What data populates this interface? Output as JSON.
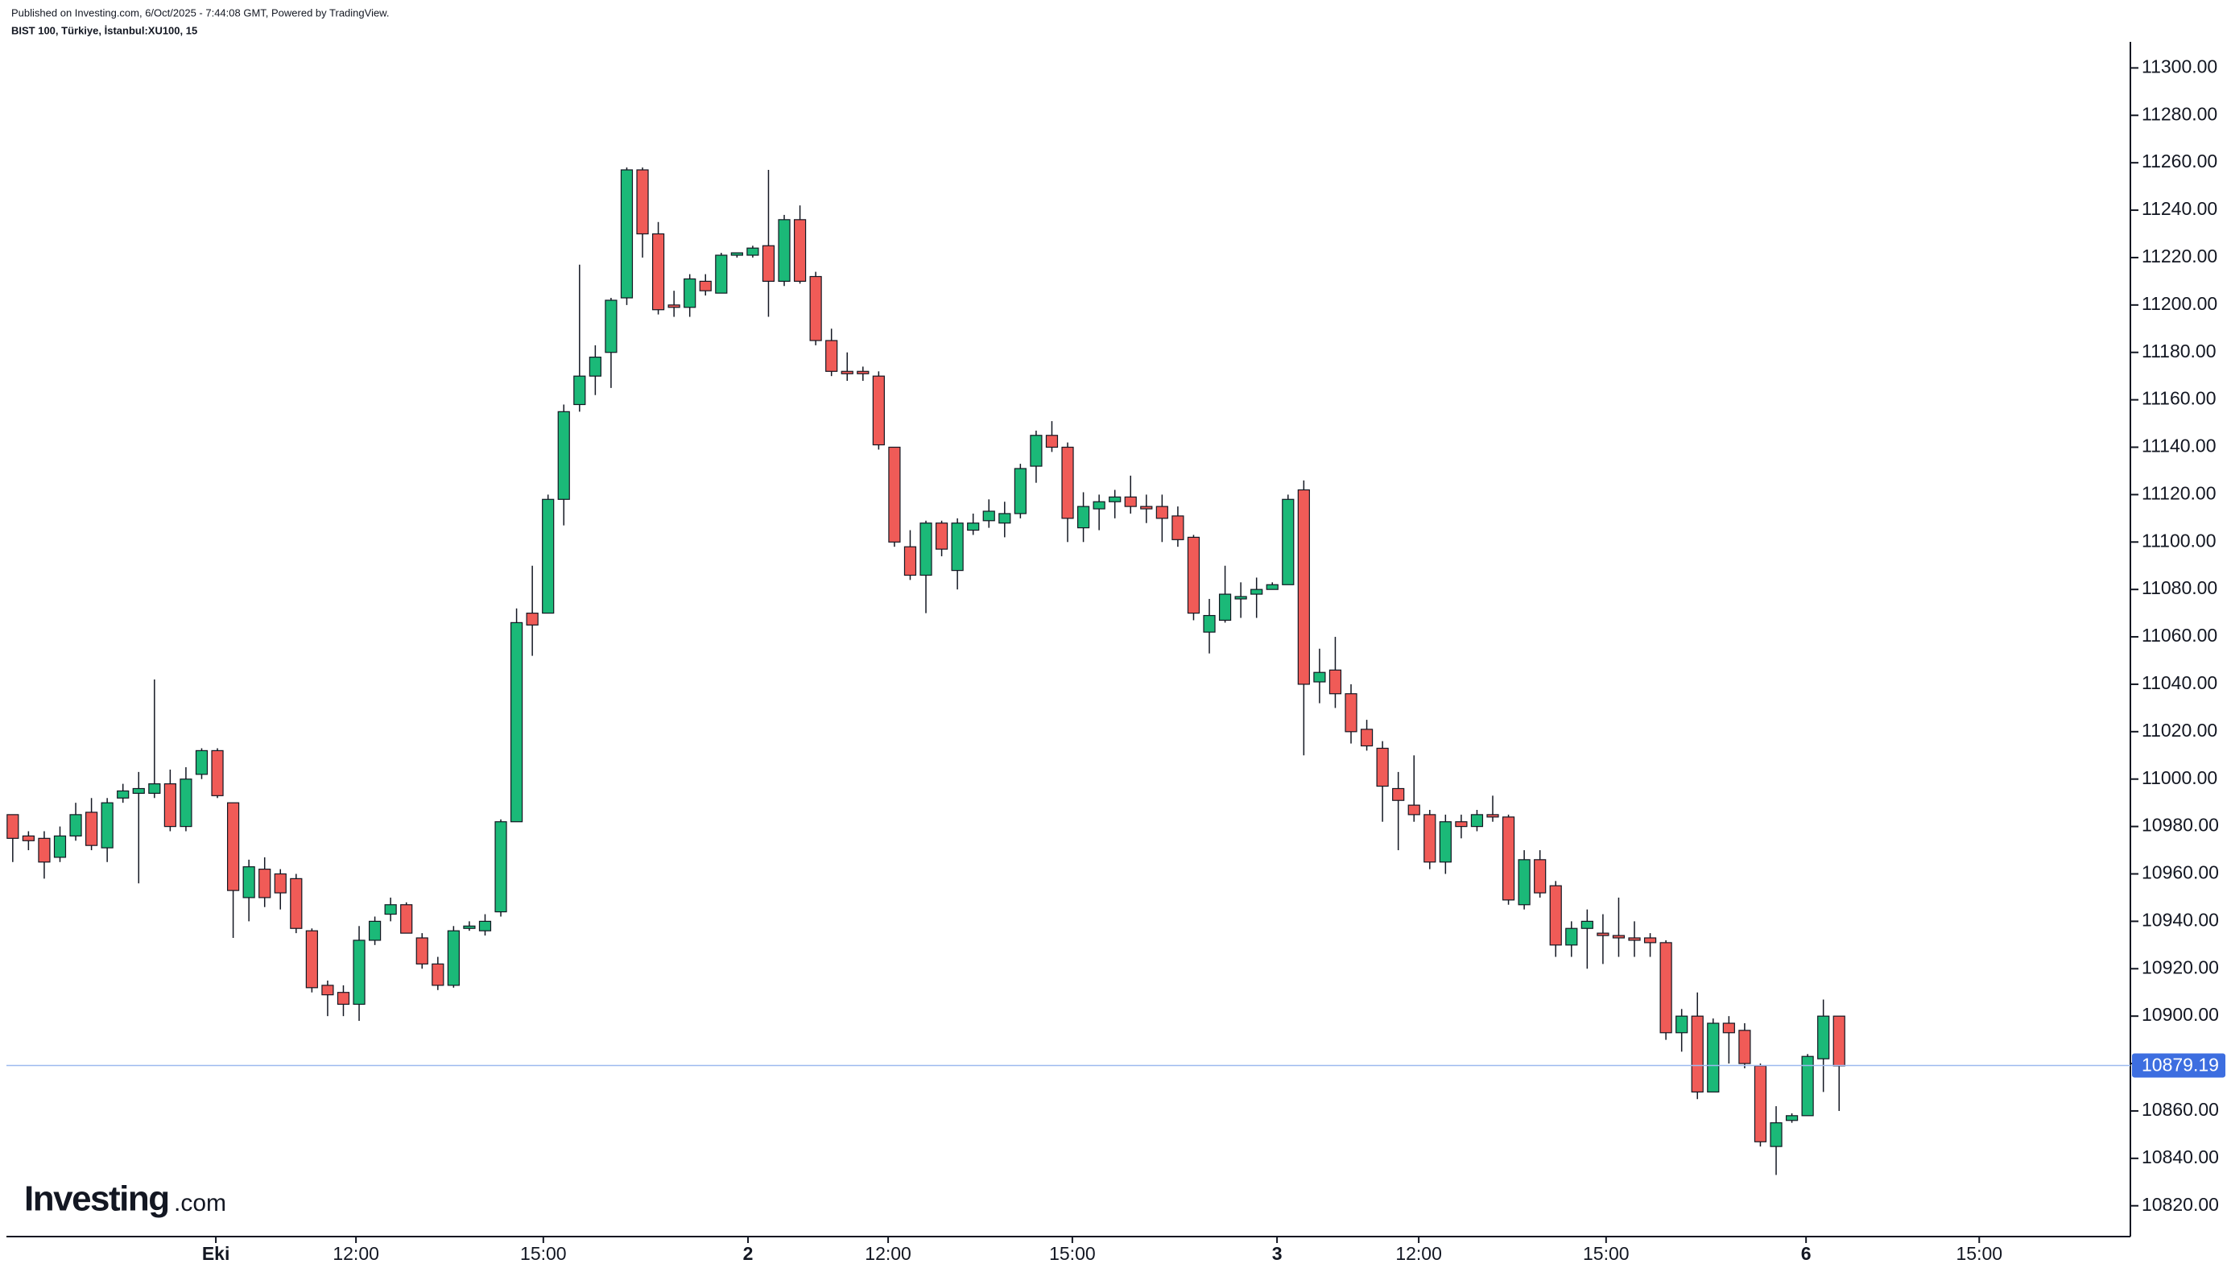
{
  "chart_data": {
    "type": "candlestick",
    "published": "Published on Investing.com, 6/Oct/2025 - 7:44:08 GMT, Powered by TradingView.",
    "symbol": "BIST 100, Türkiye, İstanbul:XU100, 15",
    "logo": {
      "brand": "Investing",
      "suffix": ".com"
    },
    "up_color": "#1bb978",
    "down_color": "#f05b57",
    "open": [
      10985,
      10976,
      10975,
      10967,
      10976,
      10986,
      10971,
      10992,
      10994,
      10994,
      10998,
      10980,
      11002,
      11012,
      10990,
      10950,
      10962,
      10960,
      10958,
      10936,
      10913,
      10910,
      10905,
      10932,
      10943,
      10947,
      10933,
      10922,
      10913,
      10937,
      10936,
      10944,
      10982,
      11070,
      11070,
      11118,
      11158,
      11170,
      11180,
      11203,
      11257,
      11230,
      11200,
      11199,
      11210,
      11205,
      11221,
      11221,
      11225,
      11210,
      11236,
      11212,
      11185,
      11172,
      11172,
      11170,
      11140,
      11098,
      11086,
      11108,
      11088,
      11105,
      11109,
      11108,
      11112,
      11132,
      11145,
      11140,
      11106,
      11114,
      11117,
      11119,
      11115,
      11115,
      11111,
      11102,
      11062,
      11067,
      11076,
      11078,
      11080,
      11082,
      11122,
      11041,
      11046,
      11036,
      11021,
      11013,
      10996,
      10989,
      10985,
      10965,
      10982,
      10980,
      10985,
      10984,
      10947,
      10966,
      10955,
      10930,
      10937,
      10935,
      10934,
      10933,
      10933,
      10931,
      10893,
      10900,
      10868,
      10897,
      10894,
      10879,
      10845,
      10856,
      10858,
      10882,
      10900
    ],
    "high": [
      10985,
      10978,
      10978,
      10980,
      10990,
      10992,
      10992,
      10998,
      11003,
      11042,
      11004,
      11005,
      11013,
      11013,
      10990,
      10966,
      10967,
      10962,
      10960,
      10937,
      10915,
      10913,
      10938,
      10942,
      10950,
      10948,
      10935,
      10925,
      10938,
      10940,
      10943,
      10983,
      11072,
      11090,
      11120,
      11158,
      11217,
      11183,
      11203,
      11258,
      11258,
      11235,
      11206,
      11213,
      11213,
      11222,
      11222,
      11225,
      11257,
      11238,
      11242,
      11214,
      11190,
      11180,
      11174,
      11172,
      11140,
      11105,
      11109,
      11109,
      11110,
      11112,
      11118,
      11117,
      11133,
      11147,
      11151,
      11142,
      11121,
      11120,
      11122,
      11128,
      11120,
      11120,
      11115,
      11103,
      11076,
      11090,
      11083,
      11085,
      11083,
      11120,
      11126,
      11055,
      11060,
      11040,
      11025,
      11016,
      11003,
      11010,
      10987,
      10985,
      10985,
      10987,
      10993,
      10985,
      10970,
      10970,
      10957,
      10940,
      10945,
      10943,
      10950,
      10940,
      10935,
      10932,
      10903,
      10910,
      10899,
      10900,
      10897,
      10880,
      10862,
      10859,
      10884,
      10907,
      10900
    ],
    "low": [
      10965,
      10970,
      10958,
      10965,
      10974,
      10970,
      10965,
      10990,
      10956,
      10992,
      10978,
      10978,
      11000,
      10992,
      10933,
      10940,
      10946,
      10945,
      10935,
      10910,
      10900,
      10900,
      10898,
      10930,
      10940,
      10935,
      10920,
      10911,
      10912,
      10936,
      10934,
      10942,
      10982,
      11052,
      11070,
      11107,
      11155,
      11162,
      11165,
      11200,
      11220,
      11196,
      11195,
      11195,
      11204,
      11205,
      11220,
      11220,
      11195,
      11208,
      11209,
      11183,
      11170,
      11168,
      11168,
      11139,
      11098,
      11084,
      11070,
      11094,
      11080,
      11103,
      11106,
      11102,
      11110,
      11125,
      11138,
      11100,
      11100,
      11105,
      11110,
      11112,
      11108,
      11100,
      11098,
      11067,
      11053,
      11066,
      11068,
      11068,
      11080,
      11082,
      11010,
      11032,
      11030,
      11015,
      11012,
      10982,
      10970,
      10982,
      10962,
      10960,
      10975,
      10978,
      10982,
      10947,
      10945,
      10950,
      10925,
      10925,
      10920,
      10922,
      10925,
      10925,
      10925,
      10890,
      10885,
      10865,
      10868,
      10880,
      10878,
      10845,
      10833,
      10855,
      10858,
      10868,
      10860
    ],
    "close": [
      10975,
      10974,
      10965,
      10976,
      10985,
      10972,
      10990,
      10995,
      10996,
      10998,
      10980,
      11000,
      11012,
      10993,
      10953,
      10963,
      10950,
      10952,
      10937,
      10912,
      10909,
      10905,
      10932,
      10940,
      10947,
      10935,
      10922,
      10913,
      10936,
      10938,
      10940,
      10982,
      11066,
      11065,
      11118,
      11155,
      11170,
      11178,
      11202,
      11257,
      11230,
      11198,
      11199,
      11211,
      11206,
      11221,
      11222,
      11224,
      11210,
      11236,
      11210,
      11185,
      11172,
      11171,
      11171,
      11141,
      11100,
      11086,
      11108,
      11097,
      11108,
      11108,
      11113,
      11112,
      11131,
      11145,
      11140,
      11110,
      11115,
      11117,
      11119,
      11115,
      11114,
      11110,
      11101,
      11070,
      11069,
      11078,
      11077,
      11080,
      11082,
      11118,
      11040,
      11045,
      11036,
      11020,
      11014,
      10997,
      10991,
      10985,
      10965,
      10982,
      10980,
      10985,
      10984,
      10949,
      10966,
      10952,
      10930,
      10937,
      10940,
      10934,
      10933,
      10932,
      10931,
      10893,
      10900,
      10868,
      10897,
      10893,
      10880,
      10847,
      10855,
      10858,
      10883,
      10900,
      10879
    ],
    "last_price": 10879.19,
    "xlim": [
      -0.4,
      134.5
    ],
    "xticks": [
      {
        "value": 12.9,
        "label": "Eki"
      },
      {
        "value": 21.8,
        "label": "12:00"
      },
      {
        "value": 33.7,
        "label": "15:00"
      },
      {
        "value": 46.7,
        "label": "2"
      },
      {
        "value": 55.6,
        "label": "12:00"
      },
      {
        "value": 67.3,
        "label": "15:00"
      },
      {
        "value": 80.3,
        "label": "3"
      },
      {
        "value": 89.3,
        "label": "12:00"
      },
      {
        "value": 101.2,
        "label": "15:00"
      },
      {
        "value": 113.9,
        "label": "6"
      },
      {
        "value": 124.9,
        "label": "15:00"
      }
    ],
    "ylim": [
      10807,
      11311
    ],
    "yticks": [
      {
        "value": 10820,
        "label": "10820.00"
      },
      {
        "value": 10840,
        "label": "10840.00"
      },
      {
        "value": 10860,
        "label": "10860.00"
      },
      {
        "value": 10880,
        "label": "10880.00"
      },
      {
        "value": 10900,
        "label": "10900.00"
      },
      {
        "value": 10920,
        "label": "10920.00"
      },
      {
        "value": 10940,
        "label": "10940.00"
      },
      {
        "value": 10960,
        "label": "10960.00"
      },
      {
        "value": 10980,
        "label": "10980.00"
      },
      {
        "value": 11000,
        "label": "11000.00"
      },
      {
        "value": 11020,
        "label": "11020.00"
      },
      {
        "value": 11040,
        "label": "11040.00"
      },
      {
        "value": 11060,
        "label": "11060.00"
      },
      {
        "value": 11080,
        "label": "11080.00"
      },
      {
        "value": 11100,
        "label": "11100.00"
      },
      {
        "value": 11120,
        "label": "11120.00"
      },
      {
        "value": 11140,
        "label": "11140.00"
      },
      {
        "value": 11160,
        "label": "11160.00"
      },
      {
        "value": 11180,
        "label": "11180.00"
      },
      {
        "value": 11200,
        "label": "11200.00"
      },
      {
        "value": 11220,
        "label": "11220.00"
      },
      {
        "value": 11240,
        "label": "11240.00"
      },
      {
        "value": 11260,
        "label": "11260.00"
      },
      {
        "value": 11280,
        "label": "11280.00"
      },
      {
        "value": 11300,
        "label": "11300.00"
      }
    ]
  }
}
